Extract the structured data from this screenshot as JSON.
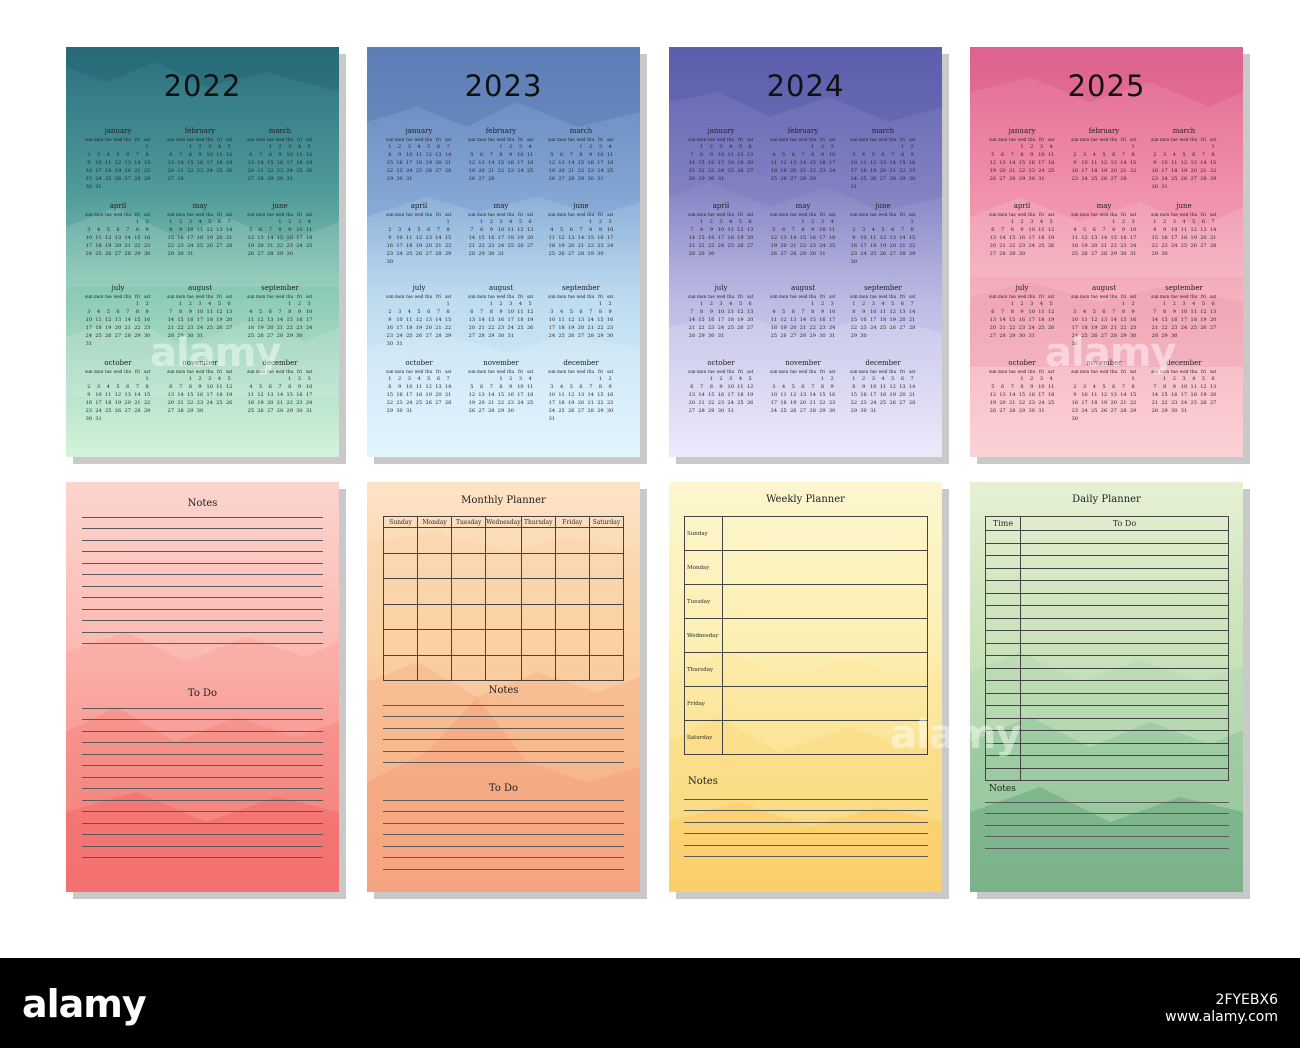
{
  "calendars": [
    {
      "year": "2022",
      "weekdays": [
        "sun",
        "mon",
        "tue",
        "wed",
        "thu",
        "fri",
        "sat"
      ],
      "months": [
        "january",
        "february",
        "march",
        "april",
        "may",
        "june",
        "july",
        "august",
        "september",
        "october",
        "november",
        "december"
      ],
      "start_offsets": [
        6,
        2,
        2,
        5,
        0,
        3,
        5,
        1,
        4,
        6,
        2,
        4
      ],
      "lengths": [
        31,
        28,
        31,
        30,
        31,
        30,
        31,
        31,
        30,
        31,
        30,
        31
      ]
    },
    {
      "year": "2023",
      "weekdays": [
        "sun",
        "mon",
        "tue",
        "wed",
        "thu",
        "fri",
        "sat"
      ],
      "months": [
        "january",
        "february",
        "march",
        "april",
        "may",
        "june",
        "july",
        "august",
        "september",
        "october",
        "november",
        "december"
      ],
      "start_offsets": [
        0,
        3,
        3,
        6,
        1,
        4,
        6,
        2,
        5,
        0,
        3,
        5
      ],
      "lengths": [
        31,
        28,
        31,
        30,
        31,
        30,
        31,
        31,
        30,
        31,
        30,
        31
      ]
    },
    {
      "year": "2024",
      "weekdays": [
        "sun",
        "mon",
        "tue",
        "wed",
        "thu",
        "fri",
        "sat"
      ],
      "months": [
        "january",
        "february",
        "march",
        "april",
        "may",
        "june",
        "july",
        "august",
        "september",
        "october",
        "november",
        "december"
      ],
      "start_offsets": [
        1,
        4,
        5,
        1,
        3,
        6,
        1,
        4,
        0,
        2,
        5,
        0
      ],
      "lengths": [
        31,
        29,
        31,
        30,
        31,
        30,
        31,
        31,
        30,
        31,
        30,
        31
      ]
    },
    {
      "year": "2025",
      "weekdays": [
        "sun",
        "mon",
        "tue",
        "wed",
        "thu",
        "fri",
        "sat"
      ],
      "months": [
        "january",
        "february",
        "march",
        "april",
        "may",
        "june",
        "july",
        "august",
        "september",
        "october",
        "november",
        "december"
      ],
      "start_offsets": [
        3,
        6,
        6,
        2,
        4,
        0,
        2,
        5,
        1,
        3,
        6,
        1
      ],
      "lengths": [
        31,
        28,
        31,
        30,
        31,
        30,
        31,
        31,
        30,
        31,
        30,
        31
      ]
    }
  ],
  "notes_page": {
    "title": "Notes",
    "todo_label": "To Do"
  },
  "monthly_planner": {
    "title": "Monthly Planner",
    "days": [
      "Sunday",
      "Monday",
      "Tuesday",
      "Wednesday",
      "Thursday",
      "Friday",
      "Saturday"
    ],
    "notes_label": "Notes",
    "todo_label": "To Do"
  },
  "weekly_planner": {
    "title": "Weekly Planner",
    "days": [
      "Sunday",
      "Monday",
      "Tuesday",
      "Wednesday",
      "Thursday",
      "Friday",
      "Saturday"
    ],
    "notes_label": "Notes"
  },
  "daily_planner": {
    "title": "Daily Planner",
    "time_header": "Time",
    "todo_header": "To Do",
    "notes_label": "Notes"
  },
  "watermark": {
    "logo": "alamy",
    "image_id": "2FYEBX6",
    "domain": "www.alamy.com"
  }
}
